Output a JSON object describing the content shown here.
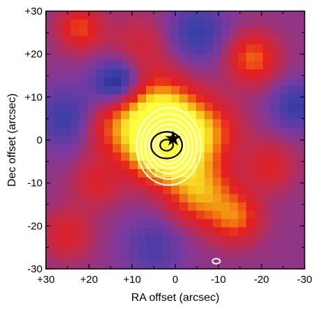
{
  "chart_data": {
    "type": "heatmap",
    "xlabel": "RA offset (arcsec)",
    "ylabel": "Dec offset (arcsec)",
    "xlim": [
      30,
      -30
    ],
    "ylim": [
      -30,
      30
    ],
    "x_ticks": [
      "+30",
      "+20",
      "+10",
      "0",
      "-10",
      "-20",
      "-30"
    ],
    "x_tick_values": [
      30,
      20,
      10,
      0,
      -10,
      -20,
      -30
    ],
    "y_ticks": [
      "-30",
      "-20",
      "-10",
      "0",
      "+10",
      "+20",
      "+30"
    ],
    "y_tick_values": [
      -30,
      -20,
      -10,
      0,
      10,
      20,
      30
    ],
    "grid": false,
    "colormap": [
      "#141a6e",
      "#3a3fa8",
      "#7a3aa0",
      "#c22a4a",
      "#e61e1e",
      "#f07a10",
      "#f5d020",
      "#ffff40"
    ],
    "intensity_sources": [
      {
        "x": 2,
        "y": -1,
        "amp": 1.0,
        "sigma": 5.5
      },
      {
        "x": 4,
        "y": 6,
        "amp": 0.55,
        "sigma": 6
      },
      {
        "x": -6,
        "y": -12,
        "amp": 0.45,
        "sigma": 5
      },
      {
        "x": -14,
        "y": -18,
        "amp": 0.35,
        "sigma": 4
      },
      {
        "x": -18,
        "y": 19,
        "amp": 0.35,
        "sigma": 4
      },
      {
        "x": 22,
        "y": 26,
        "amp": 0.3,
        "sigma": 3.5
      },
      {
        "x": -8,
        "y": 2,
        "amp": 0.3,
        "sigma": 5
      },
      {
        "x": 14,
        "y": 3,
        "amp": 0.25,
        "sigma": 5
      },
      {
        "x": -22,
        "y": -6,
        "amp": 0.2,
        "sigma": 4
      },
      {
        "x": 25,
        "y": -22,
        "amp": 0.2,
        "sigma": 4
      },
      {
        "x": 18,
        "y": -10,
        "amp": 0.18,
        "sigma": 4
      },
      {
        "x": 8,
        "y": 22,
        "amp": 0.15,
        "sigma": 5
      },
      {
        "x": 13,
        "y": 13,
        "amp": -0.35,
        "sigma": 4
      },
      {
        "x": 25,
        "y": 5,
        "amp": -0.2,
        "sigma": 5
      },
      {
        "x": -5,
        "y": 25,
        "amp": -0.2,
        "sigma": 5
      },
      {
        "x": -28,
        "y": 8,
        "amp": -0.2,
        "sigma": 4
      },
      {
        "x": 5,
        "y": -25,
        "amp": -0.15,
        "sigma": 5
      }
    ],
    "white_contours": {
      "center": [
        1.5,
        -1.5
      ],
      "ellipses": [
        {
          "rx": 7.5,
          "ry": 9
        },
        {
          "rx": 6.5,
          "ry": 7.6
        },
        {
          "rx": 5.5,
          "ry": 6.3
        },
        {
          "rx": 4.5,
          "ry": 5.1
        },
        {
          "rx": 3.6,
          "ry": 4.0
        },
        {
          "rx": 2.8,
          "ry": 3.0
        }
      ],
      "extra_blob": {
        "x": -9.5,
        "y": -28.2,
        "rx": 0.9,
        "ry": 0.6
      }
    },
    "black_contours": {
      "center": [
        2,
        -1.2
      ],
      "ellipses": [
        {
          "rx": 3.6,
          "ry": 3.1
        },
        {
          "rx": 1.5,
          "ry": 1.3
        }
      ]
    },
    "star_marker": {
      "x": 0.5,
      "y": 0.3
    }
  }
}
